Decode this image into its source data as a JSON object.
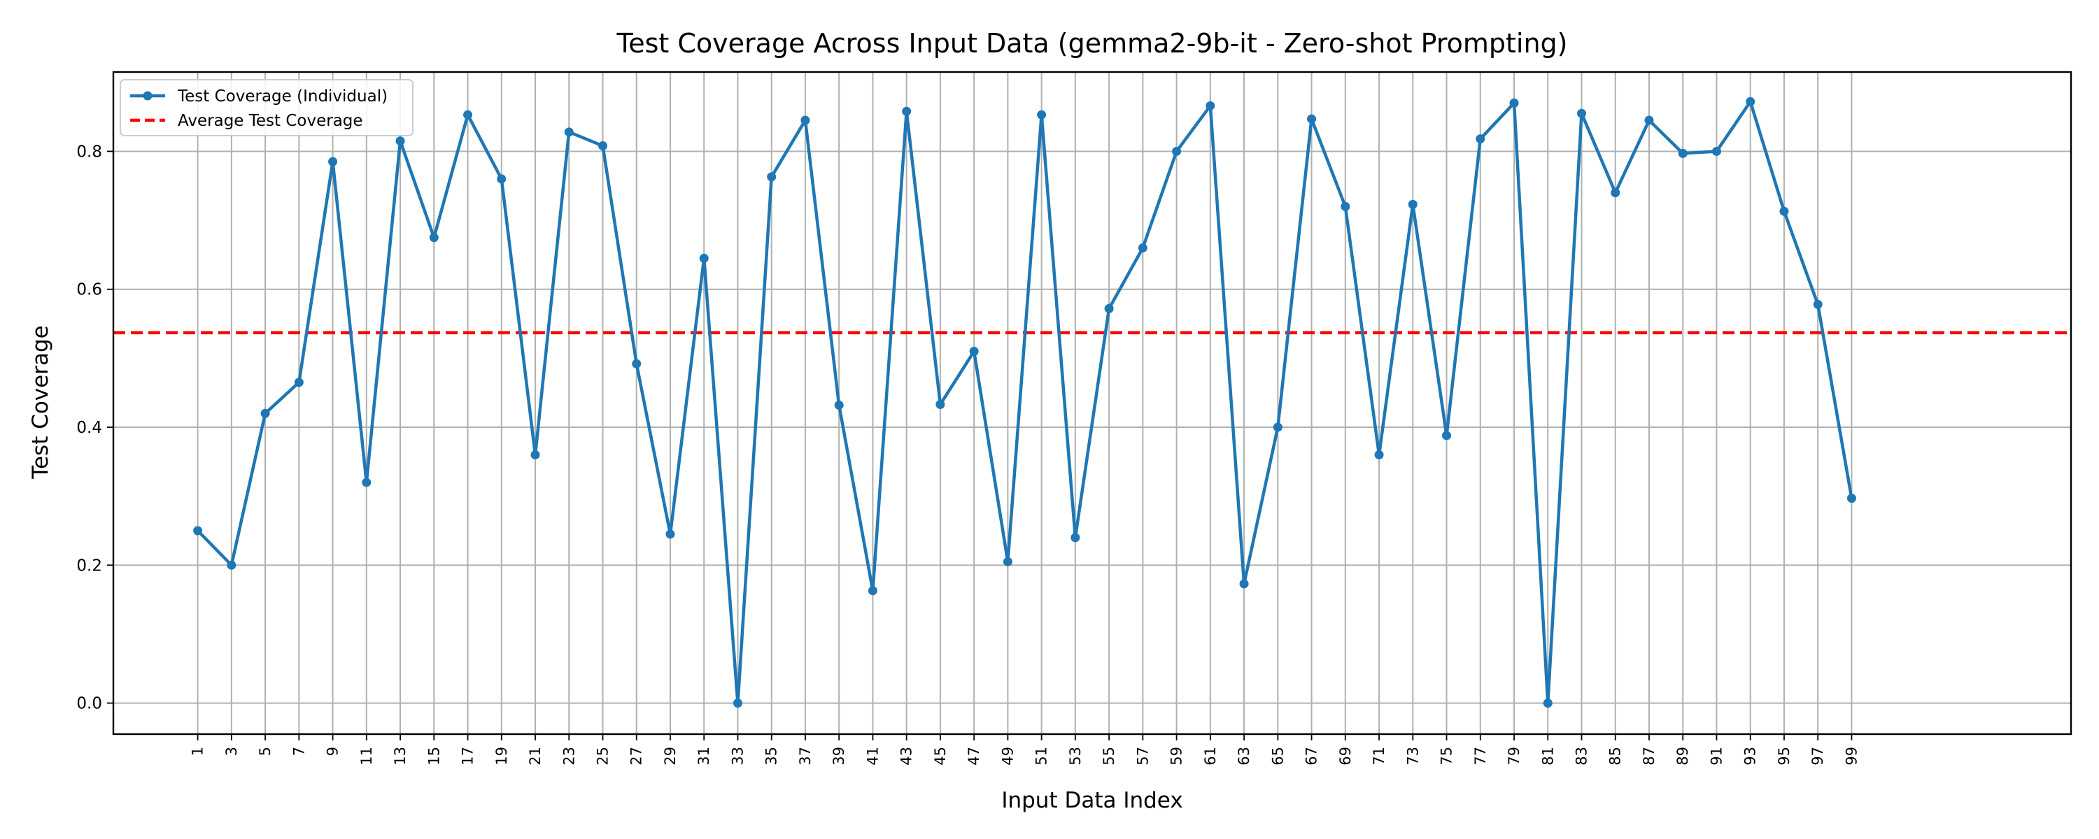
{
  "chart_data": {
    "type": "line",
    "title": "Test Coverage Across Input Data (gemma2-9b-it - Zero-shot Prompting)",
    "xlabel": "Input Data Index",
    "ylabel": "Test Coverage",
    "xlim": [
      -4,
      112
    ],
    "ylim": [
      -0.045,
      0.915
    ],
    "y_ticks": [
      0.0,
      0.2,
      0.4,
      0.6,
      0.8
    ],
    "y_tick_labels": [
      "0.0",
      "0.2",
      "0.4",
      "0.6",
      "0.8"
    ],
    "x": [
      1,
      3,
      5,
      7,
      9,
      11,
      13,
      15,
      17,
      19,
      21,
      23,
      25,
      27,
      29,
      31,
      33,
      35,
      37,
      39,
      41,
      43,
      45,
      47,
      49,
      51,
      53,
      55,
      57,
      59,
      61,
      63,
      65,
      67,
      69,
      71,
      73,
      75,
      77,
      79,
      81,
      83,
      85,
      87,
      89,
      91,
      93,
      95,
      97,
      99
    ],
    "grid": true,
    "legend_position": "top-left",
    "series": [
      {
        "name": "Test Coverage (Individual)",
        "color": "#1f77b4",
        "style": "solid-with-markers",
        "values": [
          0.25,
          0.2,
          0.42,
          0.465,
          0.785,
          0.32,
          0.815,
          0.675,
          0.853,
          0.76,
          0.36,
          0.828,
          0.808,
          0.492,
          0.245,
          0.645,
          0.0,
          0.763,
          0.845,
          0.432,
          0.163,
          0.858,
          0.433,
          0.51,
          0.205,
          0.853,
          0.24,
          0.572,
          0.66,
          0.8,
          0.866,
          0.173,
          0.4,
          0.847,
          0.72,
          0.36,
          0.723,
          0.388,
          0.818,
          0.87,
          0.0,
          0.855,
          0.74,
          0.845,
          0.797,
          0.8,
          0.872,
          0.713,
          0.578,
          0.297
        ]
      }
    ],
    "reference_line": {
      "name": "Average Test Coverage",
      "value": 0.537,
      "color": "#ff0000",
      "style": "dashed"
    }
  }
}
